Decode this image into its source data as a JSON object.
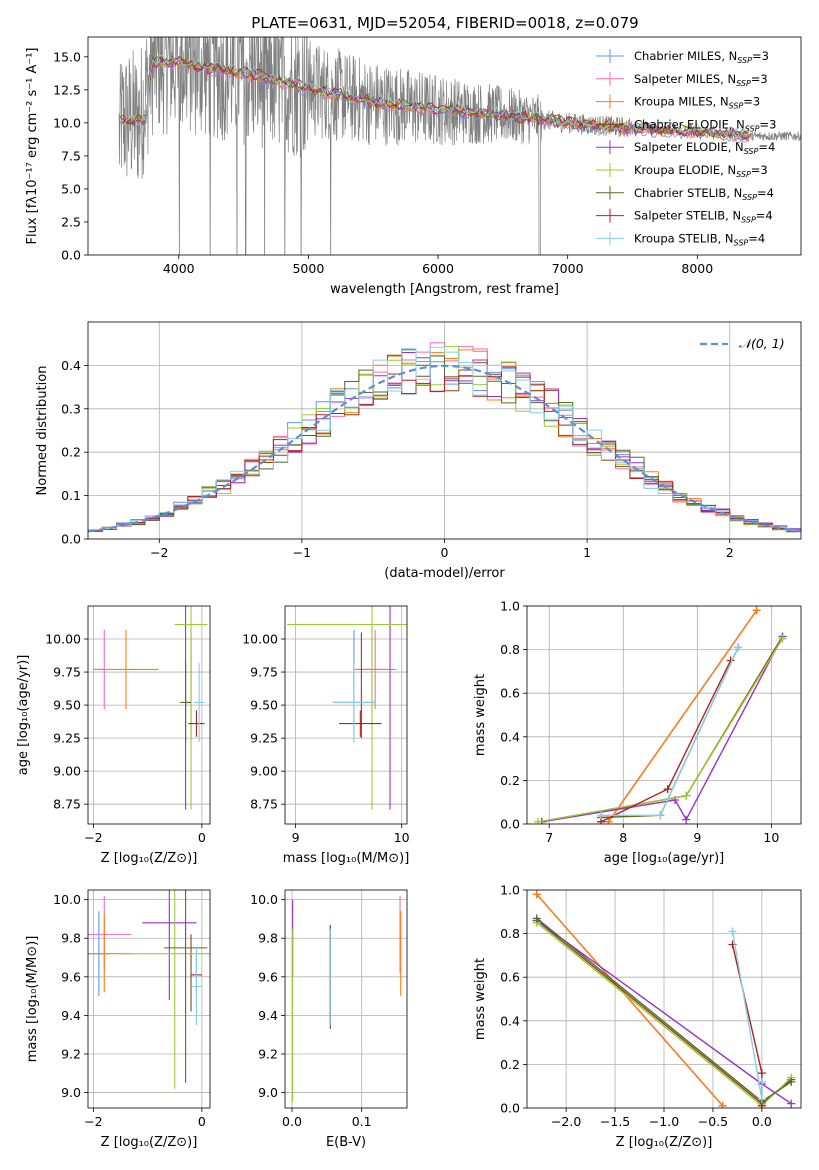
{
  "title": "PLATE=0631, MJD=52054, FIBERID=0018, z=0.079",
  "colors": {
    "Chabrier MILES": "#6495ed",
    "Salpeter MILES": "#ff69b4",
    "Kroupa MILES": "#ff7f0e",
    "Chabrier ELODIE": "#8b4513",
    "Salpeter ELODIE": "#9932cc",
    "Kroupa ELODIE": "#9acd32",
    "Chabrier STELIB": "#556b2f",
    "Salpeter STELIB": "#b22222",
    "Kroupa STELIB": "#87ceeb",
    "data": "#808080",
    "gaussian": "#5b8fd6"
  },
  "chart_data": [
    {
      "type": "line",
      "panel": "spectrum",
      "title": "PLATE=0631, MJD=52054, FIBERID=0018, z=0.079",
      "xlabel": "wavelength [Angstrom, rest frame]",
      "ylabel": "Flux [fλ10⁻¹⁷ erg cm⁻² s⁻¹ A⁻¹]",
      "xlim": [
        3300,
        8800
      ],
      "ylim": [
        0,
        16.5
      ],
      "xticks": [
        "4000",
        "5000",
        "6000",
        "7000",
        "8000"
      ],
      "yticks": [
        "0.0",
        "2.5",
        "5.0",
        "7.5",
        "10.0",
        "12.5",
        "15.0"
      ],
      "legend": "top-right",
      "series": [
        {
          "name": "Chabrier MILES",
          "label": "Chabrier MILES, N",
          "sub": "SSP",
          "tail": "=3"
        },
        {
          "name": "Salpeter MILES",
          "label": "Salpeter MILES, N",
          "sub": "SSP",
          "tail": "=3"
        },
        {
          "name": "Kroupa MILES",
          "label": "Kroupa MILES, N",
          "sub": "SSP",
          "tail": "=3"
        },
        {
          "name": "Chabrier ELODIE",
          "label": "Chabrier ELODIE, N",
          "sub": "SSP",
          "tail": "=3"
        },
        {
          "name": "Salpeter ELODIE",
          "label": "Salpeter ELODIE, N",
          "sub": "SSP",
          "tail": "=4"
        },
        {
          "name": "Kroupa ELODIE",
          "label": "Kroupa ELODIE, N",
          "sub": "SSP",
          "tail": "=3"
        },
        {
          "name": "Chabrier STELIB",
          "label": "Chabrier STELIB, N",
          "sub": "SSP",
          "tail": "=4"
        },
        {
          "name": "Salpeter STELIB",
          "label": "Salpeter STELIB, N",
          "sub": "SSP",
          "tail": "=4"
        },
        {
          "name": "Kroupa STELIB",
          "label": "Kroupa STELIB, N",
          "sub": "SSP",
          "tail": "=4"
        }
      ],
      "model_continuum": [
        [
          3550,
          10.2
        ],
        [
          3700,
          10.3
        ],
        [
          3800,
          14.5
        ],
        [
          4000,
          14.6
        ],
        [
          4200,
          14.2
        ],
        [
          4500,
          13.8
        ],
        [
          5000,
          12.6
        ],
        [
          5500,
          11.5
        ],
        [
          6000,
          11.0
        ],
        [
          6500,
          10.6
        ],
        [
          7000,
          10.0
        ],
        [
          7500,
          9.6
        ],
        [
          8000,
          9.3
        ],
        [
          8400,
          9.0
        ]
      ],
      "data_range": [
        3540,
        8800
      ]
    },
    {
      "type": "line",
      "panel": "residual-histogram",
      "xlabel": "(data-model)/error",
      "ylabel": "Normed distribution",
      "xlim": [
        -2.5,
        2.5
      ],
      "ylim": [
        0,
        0.5
      ],
      "xticks": [
        "−2",
        "−1",
        "0",
        "1",
        "2"
      ],
      "yticks": [
        "0.0",
        "0.1",
        "0.2",
        "0.3",
        "0.4"
      ],
      "legend": "top-right",
      "gaussian_label": "𝒩(0, 1)",
      "bin_width": 0.1
    },
    {
      "type": "scatter",
      "panel": "age-vs-Z",
      "xlabel": "Z [log₁₀(Z/Z⊙)]",
      "ylabel": "age  [log₁₀(age/yr)]",
      "xlim": [
        -2.1,
        0.15
      ],
      "ylim": [
        8.6,
        10.25
      ],
      "xticks": [
        "−2",
        "0"
      ],
      "yticks": [
        "8.75",
        "9.00",
        "9.25",
        "9.50",
        "9.75",
        "10.00"
      ],
      "points": [
        {
          "s": "Chabrier MILES",
          "x": -1.9,
          "xerr": 0.1,
          "y": 9.77,
          "yerr": 0.0
        },
        {
          "s": "Salpeter MILES",
          "x": -1.8,
          "xerr": 0.0,
          "y": 9.77,
          "yerr": 0.3
        },
        {
          "s": "Kroupa MILES",
          "x": -1.4,
          "xerr": 0.6,
          "y": 9.77,
          "yerr": 0.3
        },
        {
          "s": "Chabrier ELODIE",
          "x": -0.2,
          "xerr": 0.0,
          "y": 9.65,
          "yerr": 0.4
        },
        {
          "s": "Salpeter ELODIE",
          "x": -0.3,
          "xerr": 0.2,
          "y": 10.11,
          "yerr": 1.4
        },
        {
          "s": "Kroupa ELODIE",
          "x": -0.2,
          "xerr": 0.3,
          "y": 10.11,
          "yerr": 1.4
        },
        {
          "s": "Chabrier STELIB",
          "x": -0.3,
          "xerr": 0.1,
          "y": 9.52,
          "yerr": 0.3
        },
        {
          "s": "Salpeter STELIB",
          "x": -0.1,
          "xerr": 0.15,
          "y": 9.36,
          "yerr": 0.1
        },
        {
          "s": "Kroupa STELIB",
          "x": -0.05,
          "xerr": 0.1,
          "y": 9.52,
          "yerr": 0.3
        }
      ]
    },
    {
      "type": "scatter",
      "panel": "age-vs-mass",
      "xlabel": "mass [log₁₀(M/M⊙)]",
      "ylabel": "",
      "xlim": [
        8.9,
        10.05
      ],
      "ylim": [
        8.6,
        10.25
      ],
      "xticks": [
        "9",
        "10"
      ],
      "yticks": [
        "8.75",
        "9.00",
        "9.25",
        "9.50",
        "9.75",
        "10.00"
      ],
      "points": [
        {
          "s": "Chabrier MILES",
          "x": 9.55,
          "xerr": 0.0,
          "y": 9.77,
          "yerr": 0.3
        },
        {
          "s": "Salpeter MILES",
          "x": 9.75,
          "xerr": 0.2,
          "y": 9.77,
          "yerr": 0.3
        },
        {
          "s": "Kroupa MILES",
          "x": 9.72,
          "xerr": 0.15,
          "y": 9.77,
          "yerr": 0.3
        },
        {
          "s": "Chabrier ELODIE",
          "x": 9.62,
          "xerr": 0.0,
          "y": 9.65,
          "yerr": 0.4
        },
        {
          "s": "Salpeter ELODIE",
          "x": 9.89,
          "xerr": 0.1,
          "y": 10.11,
          "yerr": 1.4
        },
        {
          "s": "Kroupa ELODIE",
          "x": 9.72,
          "xerr": 0.8,
          "y": 10.11,
          "yerr": 1.4
        },
        {
          "s": "Chabrier STELIB",
          "x": 9.55,
          "xerr": 0.2,
          "y": 9.52,
          "yerr": 0.3
        },
        {
          "s": "Salpeter STELIB",
          "x": 9.61,
          "xerr": 0.2,
          "y": 9.36,
          "yerr": 0.1
        },
        {
          "s": "Kroupa STELIB",
          "x": 9.55,
          "xerr": 0.2,
          "y": 9.52,
          "yerr": 0.3
        }
      ]
    },
    {
      "type": "line",
      "panel": "mass-weight-vs-age",
      "xlabel": "age  [log₁₀(age/yr)]",
      "ylabel": "mass weight",
      "xlim": [
        6.7,
        10.4
      ],
      "ylim": [
        0,
        1.0
      ],
      "xticks": [
        "7",
        "8",
        "9",
        "10"
      ],
      "yticks": [
        "0.0",
        "0.2",
        "0.4",
        "0.6",
        "0.8",
        "1.0"
      ],
      "series": [
        {
          "name": "Chabrier MILES",
          "x": [
            7.8,
            9.8
          ],
          "y": [
            0.01,
            0.98
          ]
        },
        {
          "name": "Salpeter MILES",
          "x": [
            7.8,
            9.8
          ],
          "y": [
            0.01,
            0.98
          ]
        },
        {
          "name": "Kroupa MILES",
          "x": [
            7.8,
            9.8
          ],
          "y": [
            0.01,
            0.98
          ]
        },
        {
          "name": "Chabrier ELODIE",
          "x": [
            6.9,
            8.85,
            10.15
          ],
          "y": [
            0.01,
            0.13,
            0.86
          ]
        },
        {
          "name": "Salpeter ELODIE",
          "x": [
            6.9,
            8.7,
            8.85,
            10.15
          ],
          "y": [
            0.01,
            0.11,
            0.02,
            0.86
          ]
        },
        {
          "name": "Kroupa ELODIE",
          "x": [
            6.85,
            8.85,
            10.15
          ],
          "y": [
            0.01,
            0.13,
            0.85
          ]
        },
        {
          "name": "Chabrier STELIB",
          "x": [
            7.7,
            8.5,
            9.55
          ],
          "y": [
            0.03,
            0.04,
            0.81
          ]
        },
        {
          "name": "Salpeter STELIB",
          "x": [
            7.7,
            8.6,
            9.45
          ],
          "y": [
            0.01,
            0.16,
            0.75
          ]
        },
        {
          "name": "Kroupa STELIB",
          "x": [
            7.7,
            8.5,
            9.55
          ],
          "y": [
            0.04,
            0.04,
            0.81
          ]
        }
      ]
    },
    {
      "type": "scatter",
      "panel": "mass-vs-Z",
      "xlabel": "Z [log₁₀(Z/Z⊙)]",
      "ylabel": "mass [log₁₀(M/M⊙)]",
      "xlim": [
        -2.1,
        0.15
      ],
      "ylim": [
        8.92,
        10.05
      ],
      "xticks": [
        "−2",
        "0"
      ],
      "yticks": [
        "9.0",
        "9.2",
        "9.4",
        "9.6",
        "9.8",
        "10.0"
      ],
      "points": [
        {
          "s": "Chabrier MILES",
          "x": -1.9,
          "xerr": 0.2,
          "y": 9.72,
          "yerr": 0.22
        },
        {
          "s": "Salpeter MILES",
          "x": -1.8,
          "xerr": 0.5,
          "y": 9.82,
          "yerr": 0.2
        },
        {
          "s": "Kroupa MILES",
          "x": -1.8,
          "xerr": 0.5,
          "y": 9.72,
          "yerr": 0.2
        },
        {
          "s": "Chabrier ELODIE",
          "x": -0.2,
          "xerr": 0.0,
          "y": 9.62,
          "yerr": 0.2
        },
        {
          "s": "Salpeter ELODIE",
          "x": -0.6,
          "xerr": 0.5,
          "y": 9.88,
          "yerr": 0.4
        },
        {
          "s": "Kroupa ELODIE",
          "x": -0.5,
          "xerr": 1.0,
          "y": 9.72,
          "yerr": 0.7
        },
        {
          "s": "Chabrier STELIB",
          "x": -0.3,
          "xerr": 0.4,
          "y": 9.75,
          "yerr": 0.7
        },
        {
          "s": "Salpeter STELIB",
          "x": -0.1,
          "xerr": 0.1,
          "y": 9.61,
          "yerr": 0.1
        },
        {
          "s": "Kroupa STELIB",
          "x": -0.1,
          "xerr": 0.1,
          "y": 9.55,
          "yerr": 0.2
        }
      ]
    },
    {
      "type": "scatter",
      "panel": "mass-vs-EBV",
      "xlabel": "E(B-V)",
      "ylabel": "",
      "xlim": [
        -0.01,
        0.165
      ],
      "ylim": [
        8.92,
        10.05
      ],
      "xticks": [
        "0.0",
        "0.1"
      ],
      "yticks": [
        "9.0",
        "9.2",
        "9.4",
        "9.6",
        "9.8",
        "10.0"
      ],
      "points": [
        {
          "s": "Chabrier MILES",
          "x": 0.155,
          "xerr": 0.0,
          "y": 9.82,
          "yerr": 0.12
        },
        {
          "s": "Salpeter MILES",
          "x": 0.155,
          "xerr": 0.0,
          "y": 9.82,
          "yerr": 0.2
        },
        {
          "s": "Kroupa MILES",
          "x": 0.156,
          "xerr": 0.0,
          "y": 9.72,
          "yerr": 0.22
        },
        {
          "s": "Chabrier ELODIE",
          "x": 0.055,
          "xerr": 0.0,
          "y": 9.6,
          "yerr": 0.27
        },
        {
          "s": "Salpeter ELODIE",
          "x": 0.001,
          "xerr": 0.0,
          "y": 9.8,
          "yerr": 0.2
        },
        {
          "s": "Kroupa ELODIE",
          "x": 0.001,
          "xerr": 0.0,
          "y": 9.4,
          "yerr": 0.45
        },
        {
          "s": "Chabrier STELIB",
          "x": 0.055,
          "xerr": 0.0,
          "y": 9.6,
          "yerr": 0.25
        },
        {
          "s": "Salpeter STELIB",
          "x": 0.055,
          "xerr": 0.0,
          "y": 9.61,
          "yerr": 0.25
        },
        {
          "s": "Kroupa STELIB",
          "x": 0.055,
          "xerr": 0.0,
          "y": 9.6,
          "yerr": 0.25
        }
      ]
    },
    {
      "type": "line",
      "panel": "mass-weight-vs-Z",
      "xlabel": "Z [log₁₀(Z/Z⊙)]",
      "ylabel": "mass weight",
      "xlim": [
        -2.4,
        0.4
      ],
      "ylim": [
        0,
        1.0
      ],
      "xticks": [
        "−2.0",
        "−1.5",
        "−1.0",
        "−0.5",
        "0.0"
      ],
      "yticks": [
        "0.0",
        "0.2",
        "0.4",
        "0.6",
        "0.8",
        "1.0"
      ],
      "series": [
        {
          "name": "Chabrier MILES",
          "x": [
            -2.3,
            -0.4
          ],
          "y": [
            0.98,
            0.01
          ]
        },
        {
          "name": "Salpeter MILES",
          "x": [
            -2.3,
            -0.4
          ],
          "y": [
            0.98,
            0.01
          ]
        },
        {
          "name": "Kroupa MILES",
          "x": [
            -2.3,
            -0.4
          ],
          "y": [
            0.98,
            0.01
          ]
        },
        {
          "name": "Chabrier ELODIE",
          "x": [
            -2.3,
            0.0,
            0.3
          ],
          "y": [
            0.86,
            0.02,
            0.13
          ]
        },
        {
          "name": "Salpeter ELODIE",
          "x": [
            -2.3,
            0.0,
            0.3
          ],
          "y": [
            0.86,
            0.11,
            0.02
          ]
        },
        {
          "name": "Kroupa ELODIE",
          "x": [
            -2.3,
            0.0,
            0.3
          ],
          "y": [
            0.85,
            0.01,
            0.14
          ]
        },
        {
          "name": "Chabrier STELIB",
          "x": [
            -2.3,
            0.0,
            0.3
          ],
          "y": [
            0.87,
            0.03,
            0.12
          ]
        },
        {
          "name": "Salpeter STELIB",
          "x": [
            -0.3,
            0.0,
            0.0
          ],
          "y": [
            0.75,
            0.16,
            0.01
          ]
        },
        {
          "name": "Kroupa STELIB",
          "x": [
            -0.3,
            0.0,
            0.0
          ],
          "y": [
            0.81,
            0.04,
            0.12
          ]
        }
      ]
    }
  ]
}
